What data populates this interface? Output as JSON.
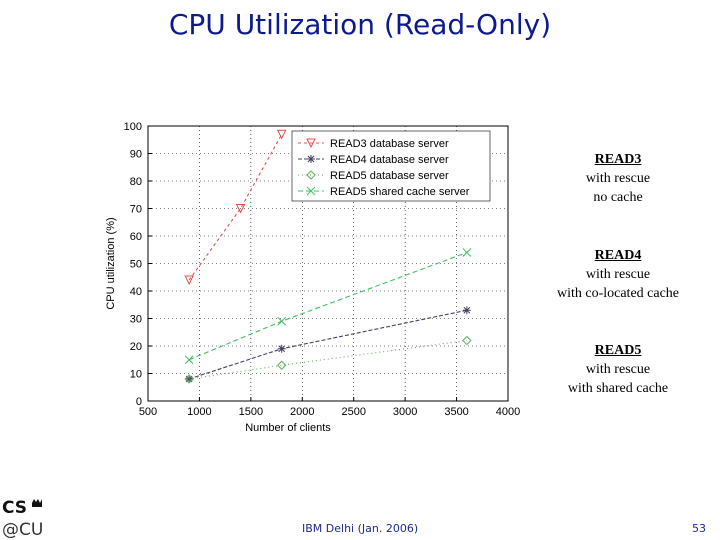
{
  "slide": {
    "title": "CPU Utilization (Read-Only)",
    "footer_center": "IBM Delhi (Jan. 2006)",
    "page_number": "53",
    "logo_text_top": "CS",
    "logo_text_bottom": "@CU"
  },
  "notes": [
    {
      "head": "READ3",
      "line1": "with rescue",
      "line2": "no cache"
    },
    {
      "head": "READ4",
      "line1": "with rescue",
      "line2": "with co-located cache"
    },
    {
      "head": "READ5",
      "line1": "with rescue",
      "line2": "with shared cache"
    }
  ],
  "chart_data": {
    "type": "line",
    "xlabel": "Number of clients",
    "ylabel": "CPU utilization (%)",
    "xlim": [
      500,
      4000
    ],
    "ylim": [
      0,
      100
    ],
    "xticks": [
      500,
      1000,
      1500,
      2000,
      2500,
      3000,
      3500,
      4000
    ],
    "yticks": [
      0,
      10,
      20,
      30,
      40,
      50,
      60,
      70,
      80,
      90,
      100
    ],
    "grid": true,
    "legend_position": "top-right",
    "series": [
      {
        "name": "READ3 database server",
        "color": "#e05050",
        "marker": "triangle-down",
        "x": [
          900,
          1400,
          1800
        ],
        "y": [
          44,
          70,
          97
        ]
      },
      {
        "name": "READ4 database server",
        "color": "#404060",
        "marker": "star",
        "x": [
          900,
          1800,
          3600
        ],
        "y": [
          8,
          19,
          33
        ]
      },
      {
        "name": "READ5 database server",
        "color": "#60b060",
        "marker": "diamond",
        "x": [
          900,
          1800,
          3600
        ],
        "y": [
          8,
          13,
          22
        ]
      },
      {
        "name": "READ5 shared cache server",
        "color": "#40c060",
        "marker": "x",
        "x": [
          900,
          1800,
          3600
        ],
        "y": [
          15,
          29,
          54
        ]
      }
    ]
  }
}
